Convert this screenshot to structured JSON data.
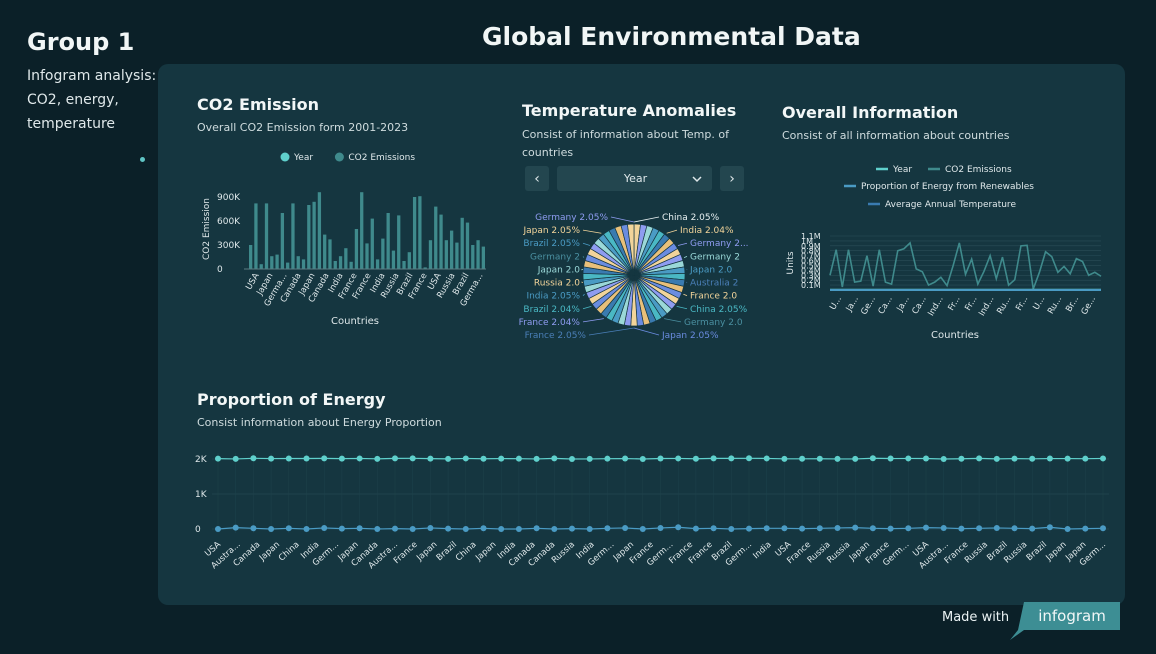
{
  "sidebar": {
    "title": "Group 1",
    "description": "Infogram analysis: CO2, energy, temperature"
  },
  "header": {
    "title": "Global Environmental Data"
  },
  "footer": {
    "made_with": "Made with",
    "brand": "infogram"
  },
  "colors": {
    "background": "#0b2028",
    "panel": "#153640",
    "year": "#5fd0cc",
    "co2": "#3f8a8c",
    "renewables": "#4a9bc4",
    "temperature": "#3a7bb0"
  },
  "sections": {
    "co2": {
      "title": "CO2 Emission",
      "subtitle": "Overall CO2 Emission form 2001-2023"
    },
    "temp": {
      "title": "Temperature Anomalies",
      "subtitle": "Consist of information about Temp. of countries",
      "selector": {
        "value": "Year",
        "prev": "‹",
        "next": "›"
      }
    },
    "overall": {
      "title": "Overall Information",
      "subtitle": "Consist of all information about countries"
    },
    "energy": {
      "title": "Proportion of Energy",
      "subtitle": "Consist information about Energy Proportion"
    }
  },
  "chart_data": [
    {
      "type": "bar",
      "id": "co2",
      "xlabel": "Countries",
      "ylabel": "CO2 Emission",
      "ylim": [
        0,
        1000000
      ],
      "yticks": [
        {
          "v": 0,
          "label": "0"
        },
        {
          "v": 300000,
          "label": "300K"
        },
        {
          "v": 600000,
          "label": "600K"
        },
        {
          "v": 900000,
          "label": "900K"
        }
      ],
      "legend": [
        {
          "name": "Year",
          "color": "#5fd0cc"
        },
        {
          "name": "CO2 Emissions",
          "color": "#3f8a8c"
        }
      ],
      "tick_labels": [
        "USA",
        "Japan",
        "Germa...",
        "Canada",
        "Japan",
        "Canada",
        "India",
        "France",
        "France",
        "India",
        "Russia",
        "Brazil",
        "France",
        "USA",
        "Russia",
        "Brazil",
        "Germa..."
      ],
      "values": [
        300000,
        820000,
        60000,
        820000,
        160000,
        180000,
        700000,
        80000,
        820000,
        160000,
        120000,
        800000,
        840000,
        960000,
        430000,
        370000,
        100000,
        160000,
        260000,
        90000,
        500000,
        960000,
        320000,
        630000,
        120000,
        380000,
        700000,
        230000,
        670000,
        100000,
        210000,
        900000,
        910000,
        20000,
        360000,
        780000,
        680000,
        360000,
        480000,
        330000,
        640000,
        580000,
        300000,
        360000,
        280000
      ]
    },
    {
      "type": "pie",
      "id": "temp",
      "labels": [
        {
          "text": "China 2.05%",
          "side": "right",
          "color": "#e8f1f2"
        },
        {
          "text": "India 2.04%",
          "side": "right",
          "color": "#f2d49a"
        },
        {
          "text": "Germany 2...",
          "side": "right",
          "color": "#8e9cf0"
        },
        {
          "text": "Germany 2",
          "side": "right",
          "color": "#9ad8d8"
        },
        {
          "text": "Japan 2.0",
          "side": "right",
          "color": "#4a9bc4"
        },
        {
          "text": "Australia 2",
          "side": "right",
          "color": "#4a7fb8"
        },
        {
          "text": "France 2.0",
          "side": "right",
          "color": "#f2d49a"
        },
        {
          "text": "China 2.05%",
          "side": "right",
          "color": "#4ab8c4"
        },
        {
          "text": "Germany 2.0",
          "side": "right",
          "color": "#4a8fa0"
        },
        {
          "text": "Japan 2.05%",
          "side": "right",
          "color": "#6a8ce0"
        },
        {
          "text": "Germany 2.05%",
          "side": "left",
          "color": "#8e9cf0"
        },
        {
          "text": "Japan 2.05%",
          "side": "left",
          "color": "#f2d49a"
        },
        {
          "text": "Brazil 2.05%",
          "side": "left",
          "color": "#4a9bc4"
        },
        {
          "text": "Germany 2",
          "side": "left",
          "color": "#4a8fa0"
        },
        {
          "text": "Japan 2.0",
          "side": "left",
          "color": "#9ad8d8"
        },
        {
          "text": "Russia 2.0",
          "side": "left",
          "color": "#f2d49a"
        },
        {
          "text": "India 2.05%",
          "side": "left",
          "color": "#4a9bc4"
        },
        {
          "text": "Brazil 2.04%",
          "side": "left",
          "color": "#4ab8c4"
        },
        {
          "text": "France 2.04%",
          "side": "left",
          "color": "#8e9cf0"
        },
        {
          "text": "France 2.05%",
          "side": "left",
          "color": "#4a7fb8"
        }
      ],
      "slice_count": 49,
      "slice_palette": [
        "#f2d49a",
        "#8e9cf0",
        "#9ad8d8",
        "#4a9bc4",
        "#4ab8c4",
        "#3a7bb0",
        "#e8c07a",
        "#6a8ce0"
      ]
    },
    {
      "type": "line",
      "id": "overall",
      "xlabel": "Countries",
      "ylabel": "Units",
      "ylim": [
        0,
        1100000
      ],
      "yticks": [
        {
          "v": 100000,
          "label": "0.1M"
        },
        {
          "v": 200000,
          "label": "0.2M"
        },
        {
          "v": 300000,
          "label": "0.3M"
        },
        {
          "v": 400000,
          "label": "0.4M"
        },
        {
          "v": 500000,
          "label": "0.5M"
        },
        {
          "v": 600000,
          "label": "0.6M"
        },
        {
          "v": 700000,
          "label": "0.7M"
        },
        {
          "v": 800000,
          "label": "0.8M"
        },
        {
          "v": 900000,
          "label": "0.9M"
        },
        {
          "v": 1000000,
          "label": "1M"
        },
        {
          "v": 1100000,
          "label": "1.1M"
        }
      ],
      "tick_labels": [
        "U...",
        "Ja...",
        "Ge...",
        "Ca...",
        "Ja...",
        "Ca...",
        "Ind...",
        "Fr...",
        "Fr...",
        "Ind...",
        "Ru...",
        "Fr...",
        "U...",
        "Ru...",
        "Br...",
        "Ge..."
      ],
      "legend": [
        {
          "name": "Year",
          "color": "#5fd0cc"
        },
        {
          "name": "CO2 Emissions",
          "color": "#3f8a8c"
        },
        {
          "name": "Proportion of Energy from Renewables",
          "color": "#4a9bc4"
        },
        {
          "name": "Average Annual Temperature",
          "color": "#3a7bb0"
        }
      ],
      "series": [
        {
          "name": "CO2 Emissions",
          "color": "#3f8a8c",
          "values": [
            300000,
            820000,
            60000,
            820000,
            160000,
            180000,
            700000,
            80000,
            820000,
            160000,
            120000,
            800000,
            840000,
            960000,
            430000,
            370000,
            100000,
            160000,
            260000,
            90000,
            500000,
            960000,
            320000,
            630000,
            120000,
            380000,
            700000,
            230000,
            670000,
            100000,
            210000,
            900000,
            910000,
            20000,
            360000,
            780000,
            680000,
            360000,
            480000,
            330000,
            640000,
            580000,
            300000,
            360000,
            280000
          ]
        },
        {
          "name": "Year",
          "color": "#5fd0cc",
          "values": [
            2010,
            2015,
            2003,
            2020,
            2008,
            2012,
            2018,
            2001,
            2022,
            2005,
            2011,
            2019,
            2016,
            2023,
            2007,
            2013,
            2002,
            2009,
            2014,
            2004,
            2017,
            2021,
            2006,
            2012,
            2010,
            2015,
            2003,
            2020,
            2008,
            2012,
            2018,
            2001,
            2022,
            2005,
            2011,
            2019,
            2016,
            2023,
            2007,
            2013,
            2002,
            2009,
            2014,
            2004,
            2017
          ]
        }
      ]
    },
    {
      "type": "line",
      "id": "energy",
      "ylim": [
        0,
        2000
      ],
      "yticks": [
        {
          "v": 0,
          "label": "0"
        },
        {
          "v": 1000,
          "label": "1K"
        },
        {
          "v": 2000,
          "label": "2K"
        }
      ],
      "tick_labels": [
        "USA",
        "Austra...",
        "Canada",
        "Japan",
        "China",
        "India",
        "Germ...",
        "Japan",
        "Canada",
        "Austra...",
        "France",
        "Japan",
        "Brazil",
        "China",
        "Japan",
        "India",
        "Canada",
        "Canada",
        "Russia",
        "India",
        "Germ...",
        "Japan",
        "France",
        "Germ...",
        "France",
        "France",
        "Brazil",
        "Germ...",
        "India",
        "USA",
        "France",
        "Russia",
        "Russia",
        "Japan",
        "France",
        "Germ...",
        "USA",
        "Austra...",
        "France",
        "Russia",
        "Brazil",
        "Russia",
        "Brazil",
        "Japan",
        "Japan",
        "Germ..."
      ],
      "series": [
        {
          "name": "Year",
          "color": "#5fd0cc",
          "values": [
            2010,
            2002,
            2020,
            2012,
            2015,
            2015,
            2018,
            2010,
            2016,
            2005,
            2017,
            2019,
            2011,
            2003,
            2016,
            2007,
            2012,
            2009,
            2002,
            2017,
            2001,
            2002,
            2009,
            2013,
            2001,
            2015,
            2016,
            2008,
            2018,
            2017,
            2020,
            2016,
            2005,
            2006,
            2008,
            2002,
            2002,
            2021,
            2013,
            2016,
            2015,
            2001,
            2008,
            2018,
            2003,
            2012,
            2006,
            2013,
            2012,
            2009,
            2016
          ]
        },
        {
          "name": "Proportion of Energy from Renewables",
          "color": "#4a9bc4",
          "values": [
            0,
            40,
            20,
            0,
            20,
            0,
            30,
            10,
            20,
            0,
            10,
            0,
            30,
            10,
            0,
            20,
            0,
            0,
            20,
            0,
            10,
            0,
            20,
            30,
            0,
            30,
            50,
            10,
            20,
            0,
            10,
            20,
            20,
            10,
            20,
            30,
            40,
            20,
            10,
            20,
            40,
            30,
            10,
            20,
            30,
            20,
            10,
            50,
            0,
            10,
            20
          ]
        }
      ]
    }
  ]
}
